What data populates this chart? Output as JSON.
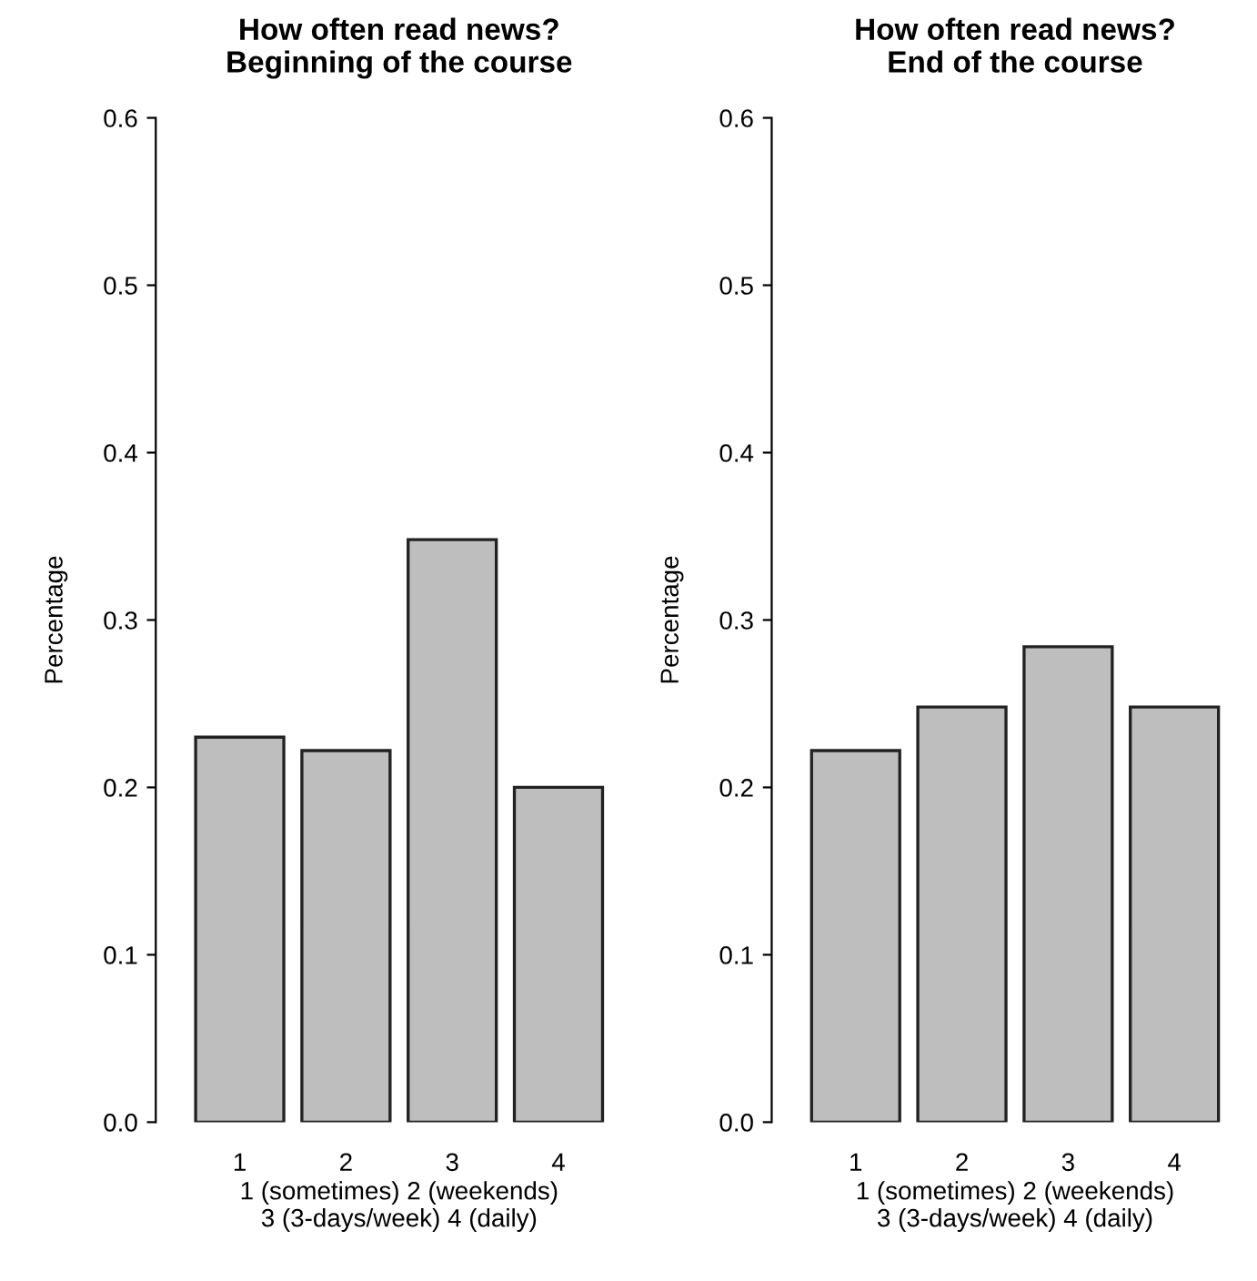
{
  "chart_data": [
    {
      "type": "bar",
      "title": "How often read news?\nBeginning of the course",
      "xlabel": "1 (sometimes) 2 (weekends)\n3 (3-days/week) 4 (daily)",
      "ylabel": "Percentage",
      "categories": [
        "1",
        "2",
        "3",
        "4"
      ],
      "values": [
        0.23,
        0.222,
        0.348,
        0.2
      ],
      "color": "#bebebe",
      "ylim": [
        0,
        0.6
      ],
      "yticks": [
        {
          "value": 0,
          "label": "0.0"
        },
        0.1,
        0.2,
        0.3,
        0.4,
        0.5,
        0.6
      ],
      "grid": false
    },
    {
      "type": "bar",
      "title": "How often read news?\nEnd of the course",
      "xlabel": "1 (sometimes) 2 (weekends)\n3 (3-days/week) 4 (daily)",
      "ylabel": "Percentage",
      "categories": [
        "1",
        "2",
        "3",
        "4"
      ],
      "values": [
        0.222,
        0.248,
        0.284,
        0.248
      ],
      "color": "#bebebe",
      "ylim": [
        0,
        0.6
      ],
      "yticks": [
        {
          "value": 0,
          "label": "0.0"
        },
        0.1,
        0.2,
        0.3,
        0.4,
        0.5,
        0.6
      ],
      "grid": false
    }
  ]
}
